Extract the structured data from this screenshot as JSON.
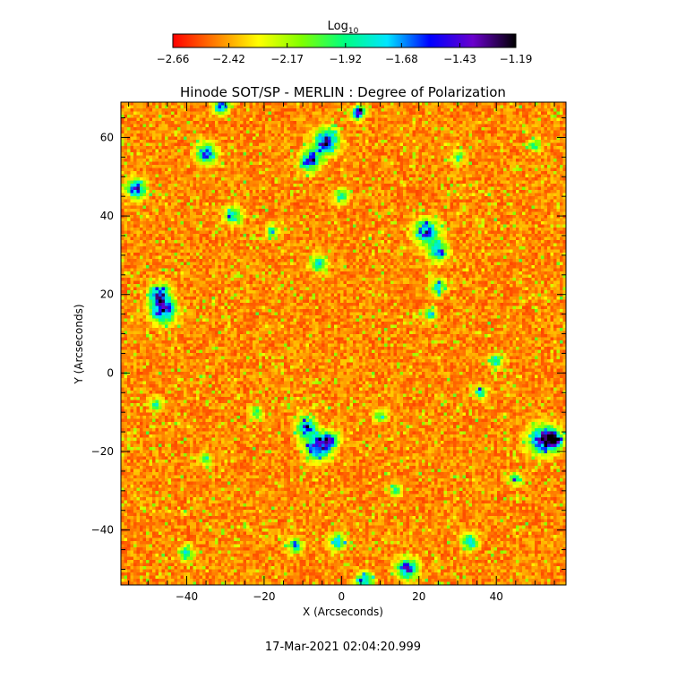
{
  "chart_data": {
    "type": "heatmap",
    "title": "Hinode SOT/SP - MERLIN : Degree of Polarization",
    "xlabel": "X (Arcseconds)",
    "ylabel": "Y (Arcseconds)",
    "xlim": [
      -57,
      58
    ],
    "ylim": [
      -54,
      69
    ],
    "x_ticks": [
      -40,
      -20,
      0,
      20,
      40
    ],
    "y_ticks": [
      -40,
      -20,
      0,
      20,
      40,
      60
    ],
    "x_tick_labels": [
      "−40",
      "−20",
      "0",
      "20",
      "40"
    ],
    "y_tick_labels": [
      "−40",
      "−20",
      "0",
      "20",
      "40",
      "60"
    ],
    "colorbar": {
      "label_base": "Log",
      "label_sub": "10",
      "range": [
        -2.66,
        -1.19
      ],
      "ticks": [
        -2.66,
        -2.42,
        -2.17,
        -1.92,
        -1.68,
        -1.43,
        -1.19
      ],
      "tick_labels": [
        "−2.66",
        "−2.42",
        "−2.17",
        "−1.92",
        "−1.68",
        "−1.43",
        "−1.19"
      ],
      "colors": [
        "#ff0000",
        "#ff7f00",
        "#ffff00",
        "#7fff00",
        "#00ff7f",
        "#00e5ff",
        "#0000ff",
        "#6a00cc",
        "#000000"
      ]
    },
    "timestamp": "17-Mar-2021 02:04:20.999"
  }
}
